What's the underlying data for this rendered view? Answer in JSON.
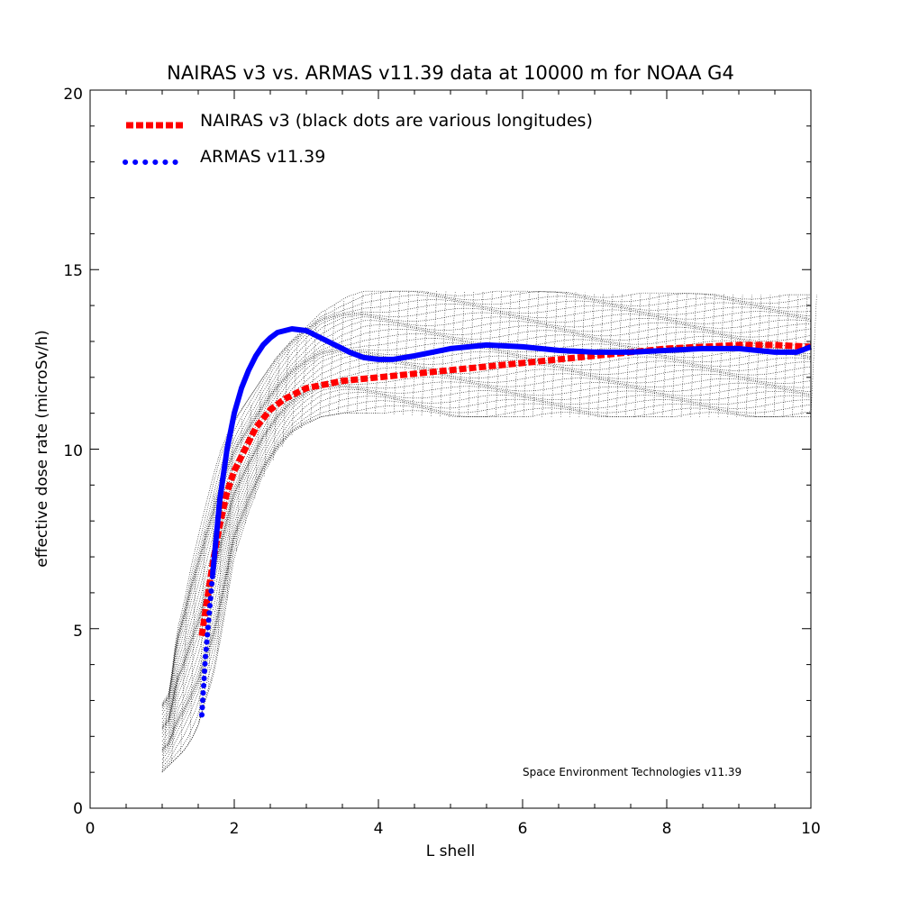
{
  "chart_data": {
    "type": "line",
    "title": "NAIRAS  v3 vs. ARMAS v11.39 data at 10000 m for NOAA G4",
    "xlabel": "L shell",
    "ylabel": "effective dose rate (microSv/h)",
    "xlim": [
      0,
      10
    ],
    "ylim": [
      0,
      20
    ],
    "x_ticks": [
      0,
      2,
      4,
      6,
      8,
      10
    ],
    "x_tick_labels": [
      "0",
      "2",
      "4",
      "6",
      "8",
      "10"
    ],
    "y_ticks": [
      0,
      5,
      10,
      15,
      20
    ],
    "y_tick_labels": [
      "0",
      "5",
      "10",
      "15",
      "20"
    ],
    "grid": false,
    "legend_position": "top-left",
    "annotation": "Space Environment Technologies v11.39",
    "series": [
      {
        "name": "NAIRAS v3 (black dots are various longitudes)",
        "color": "#ff0000",
        "style": "dashed-thick",
        "x": [
          1.55,
          1.6,
          1.7,
          1.8,
          1.9,
          2.0,
          2.1,
          2.2,
          2.3,
          2.5,
          2.7,
          3.0,
          3.5,
          4.0,
          4.5,
          5.0,
          5.5,
          6.0,
          7.0,
          8.0,
          9.0,
          9.5,
          10.0
        ],
        "y": [
          4.8,
          5.5,
          6.8,
          7.9,
          8.8,
          9.4,
          9.8,
          10.2,
          10.6,
          11.1,
          11.4,
          11.7,
          11.9,
          12.0,
          12.1,
          12.2,
          12.3,
          12.4,
          12.6,
          12.8,
          12.9,
          12.9,
          12.85
        ]
      },
      {
        "name": "ARMAS v11.39",
        "color": "#0000ff",
        "style": "solid-thick",
        "x": [
          1.55,
          1.6,
          1.7,
          1.8,
          1.9,
          2.0,
          2.1,
          2.2,
          2.3,
          2.4,
          2.5,
          2.6,
          2.7,
          2.8,
          3.0,
          3.2,
          3.4,
          3.6,
          3.8,
          4.0,
          4.2,
          4.5,
          5.0,
          5.5,
          6.0,
          6.5,
          7.0,
          7.5,
          8.0,
          8.5,
          9.0,
          9.5,
          9.8,
          10.0
        ],
        "y": [
          2.6,
          4.2,
          6.5,
          8.6,
          10.0,
          11.0,
          11.7,
          12.2,
          12.6,
          12.9,
          13.1,
          13.25,
          13.3,
          13.35,
          13.3,
          13.1,
          12.9,
          12.7,
          12.55,
          12.5,
          12.5,
          12.6,
          12.8,
          12.9,
          12.85,
          12.75,
          12.7,
          12.7,
          12.75,
          12.8,
          12.8,
          12.7,
          12.7,
          12.85
        ]
      },
      {
        "name": "",
        "color": "#000000",
        "style": "dots",
        "x": [
          1.0,
          1.1,
          1.2,
          1.3,
          1.4,
          1.5,
          1.6,
          1.7,
          1.8,
          1.9,
          2.0,
          2.2,
          2.4,
          2.6,
          2.8,
          3.0,
          3.2,
          3.5,
          3.8,
          4.0,
          5.0,
          6.0,
          7.0,
          8.0,
          9.0,
          10.0
        ],
        "y_low": [
          1.0,
          1.2,
          1.4,
          1.6,
          1.9,
          2.3,
          3.0,
          3.6,
          4.6,
          5.8,
          7.0,
          8.2,
          9.2,
          9.9,
          10.4,
          10.7,
          10.9,
          11.0,
          11.0,
          11.0,
          10.9,
          10.9,
          10.9,
          10.9,
          10.9,
          10.9
        ],
        "y_high": [
          3.0,
          3.3,
          5.0,
          5.8,
          6.8,
          7.6,
          8.4,
          9.2,
          9.9,
          10.4,
          10.8,
          11.4,
          12.0,
          12.6,
          13.1,
          13.5,
          13.9,
          14.2,
          14.4,
          14.4,
          14.4,
          14.4,
          14.35,
          14.35,
          14.3,
          14.3
        ]
      }
    ]
  }
}
